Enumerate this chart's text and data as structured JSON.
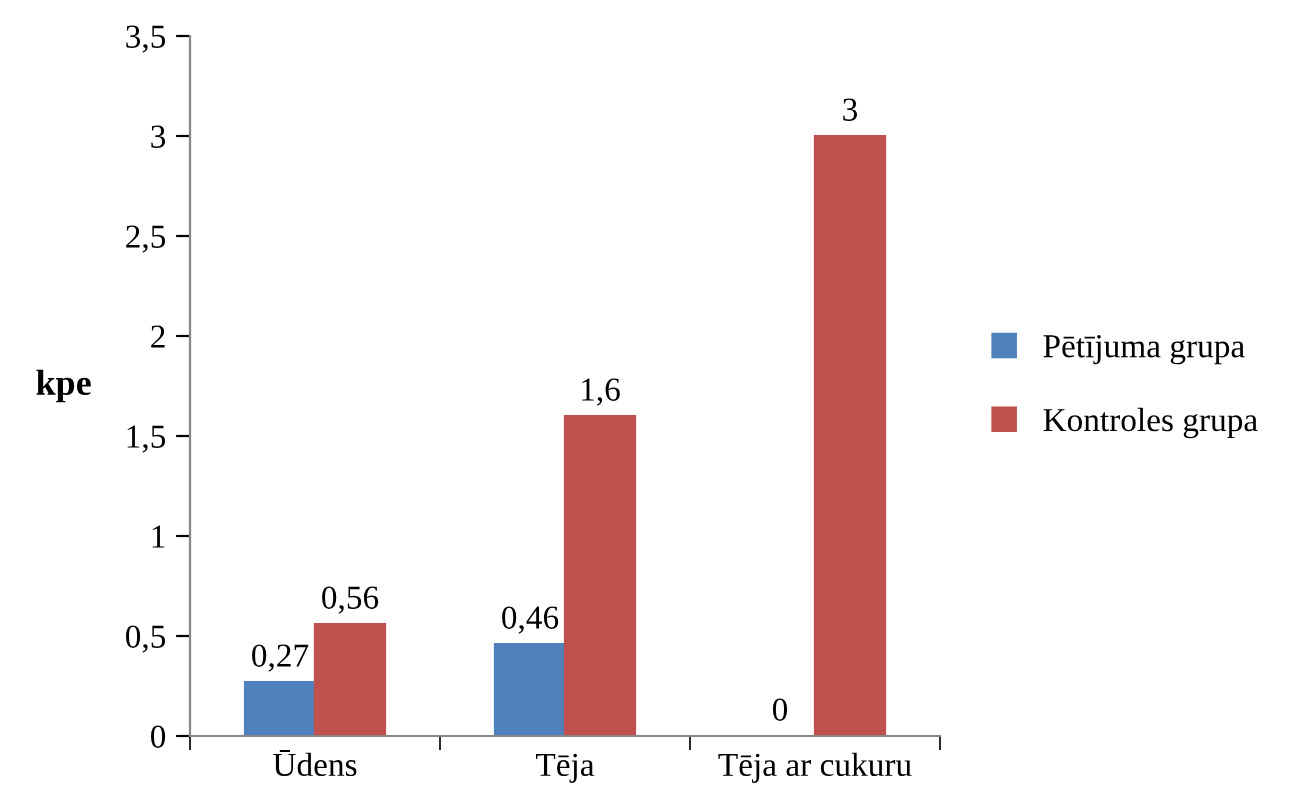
{
  "chart_data": {
    "type": "bar",
    "ylabel": "kpe",
    "categories": [
      "Ūdens",
      "Tēja",
      "Tēja ar cukuru"
    ],
    "series": [
      {
        "name": "Pētījuma grupa",
        "color": "#4f81bd",
        "values": [
          0.27,
          0.46,
          0
        ],
        "value_labels": [
          "0,27",
          "0,46",
          "0"
        ]
      },
      {
        "name": "Kontroles grupa",
        "color": "#c0504d",
        "values": [
          0.56,
          1.6,
          3
        ],
        "value_labels": [
          "0,56",
          "1,6",
          "3"
        ]
      }
    ],
    "ylim": [
      0,
      3.5
    ],
    "yticks": [
      0,
      {
        "value": 0.5,
        "label": "0,5"
      },
      1,
      {
        "value": 1.5,
        "label": "1,5"
      },
      2,
      {
        "value": 2.5,
        "label": "2,5"
      },
      3,
      {
        "value": 3.5,
        "label": "3,5"
      }
    ],
    "grid": false,
    "legend": "right"
  }
}
